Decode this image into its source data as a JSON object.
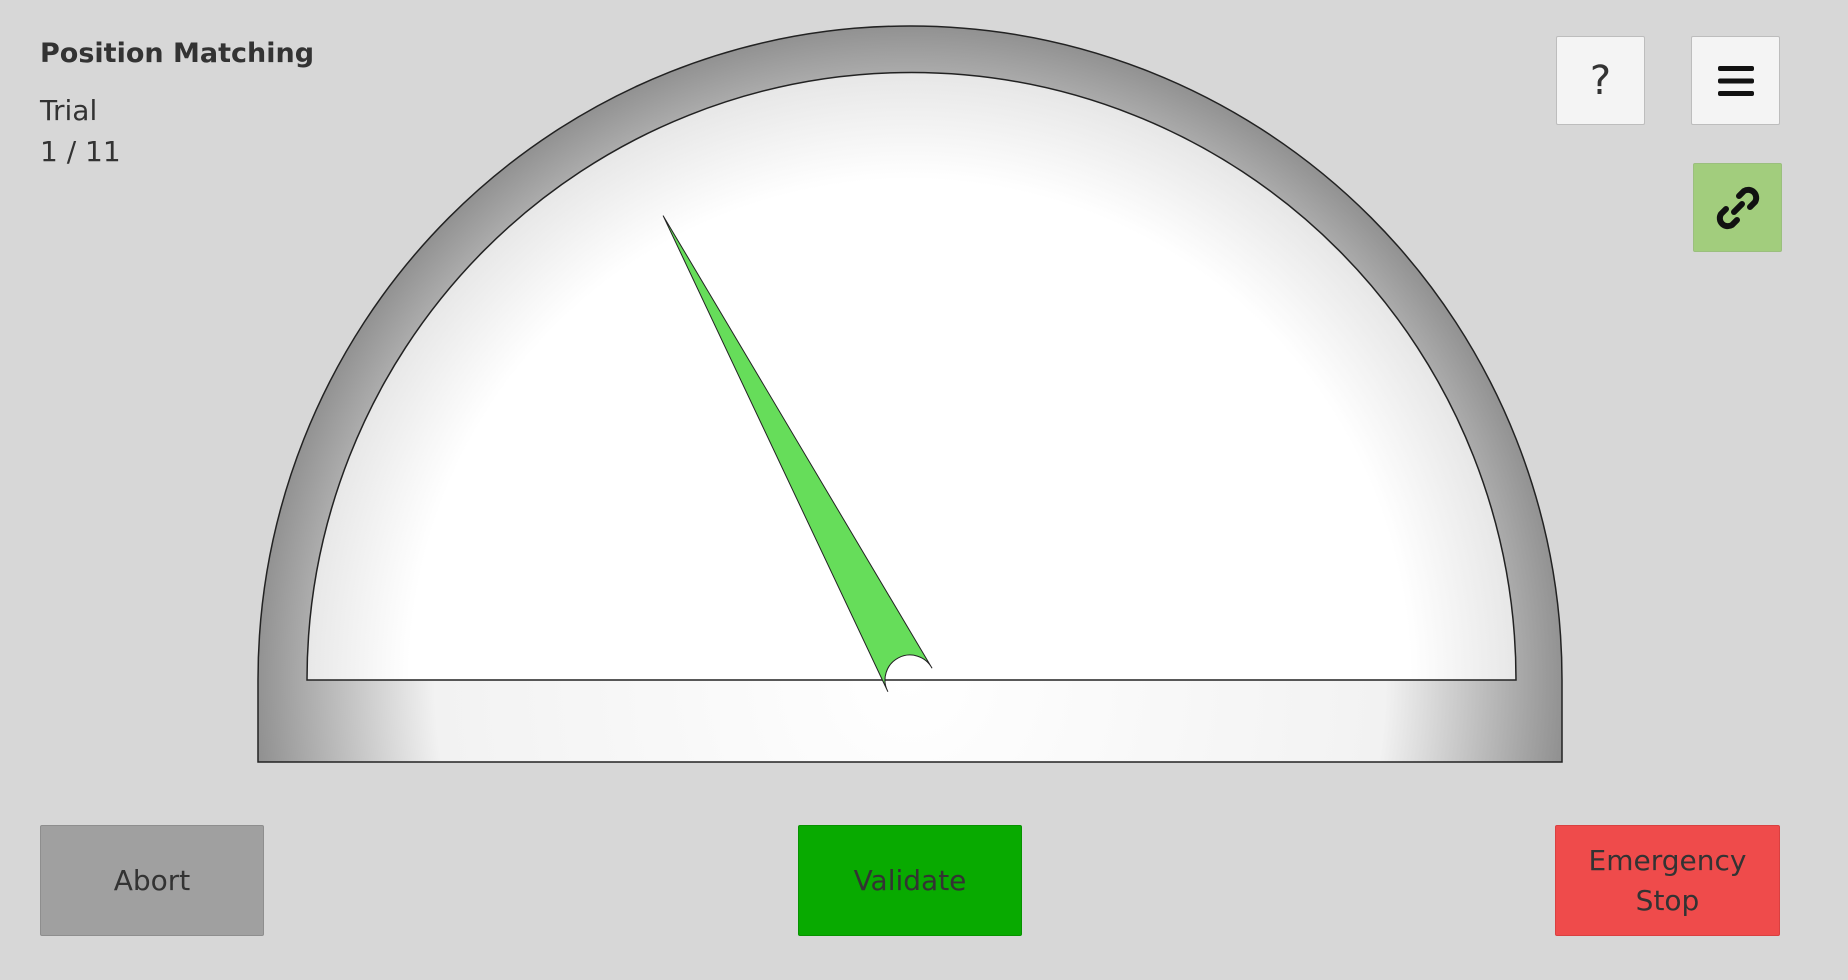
{
  "header": {
    "title": "Position Matching",
    "trial_label": "Trial",
    "trial_counter": "1 / 11"
  },
  "toolbar": {
    "help_label": "?",
    "menu_icon": "hamburger-menu-icon",
    "link_icon": "chain-link-icon",
    "link_color": "#a2cd7d"
  },
  "gauge": {
    "needle_color": "#66dd5a",
    "needle_angle_deg_from_left": 62
  },
  "actions": {
    "abort_label": "Abort",
    "validate_label": "Validate",
    "emergency_label": "Emergency Stop",
    "abort_color": "#a0a0a0",
    "validate_color": "#08aa00",
    "emergency_color": "#ef4b4b"
  }
}
